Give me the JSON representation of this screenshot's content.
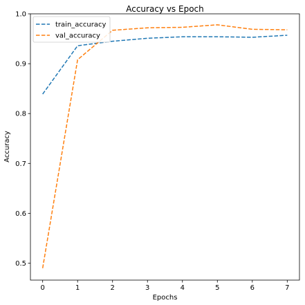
{
  "chart_data": {
    "type": "line",
    "title": "Accuracy vs Epoch",
    "xlabel": "Epochs",
    "ylabel": "Accuracy",
    "x": [
      0,
      1,
      2,
      3,
      4,
      5,
      6,
      7
    ],
    "xlim": [
      -0.35,
      7.35
    ],
    "ylim": [
      0.466,
      1.0
    ],
    "xticks": [
      "0",
      "1",
      "2",
      "3",
      "4",
      "5",
      "6",
      "7"
    ],
    "yticks": [
      {
        "value": 0.5,
        "label": "0.5"
      },
      {
        "value": 0.6,
        "label": "0.6"
      },
      {
        "value": 0.7,
        "label": "0.7"
      },
      {
        "value": 0.8,
        "label": "0.8"
      },
      {
        "value": 0.9,
        "label": "0.9"
      },
      {
        "value": 1.0,
        "label": "1.0"
      }
    ],
    "grid": false,
    "legend_position": "top-left",
    "series": [
      {
        "name": "train_accuracy",
        "color": "#1f77b4",
        "linestyle": "dashed",
        "values": [
          0.839,
          0.936,
          0.945,
          0.951,
          0.954,
          0.954,
          0.953,
          0.957
        ]
      },
      {
        "name": "val_accuracy",
        "color": "#ff7f0e",
        "linestyle": "dashed",
        "values": [
          0.49,
          0.908,
          0.967,
          0.972,
          0.973,
          0.978,
          0.969,
          0.968
        ]
      }
    ]
  }
}
